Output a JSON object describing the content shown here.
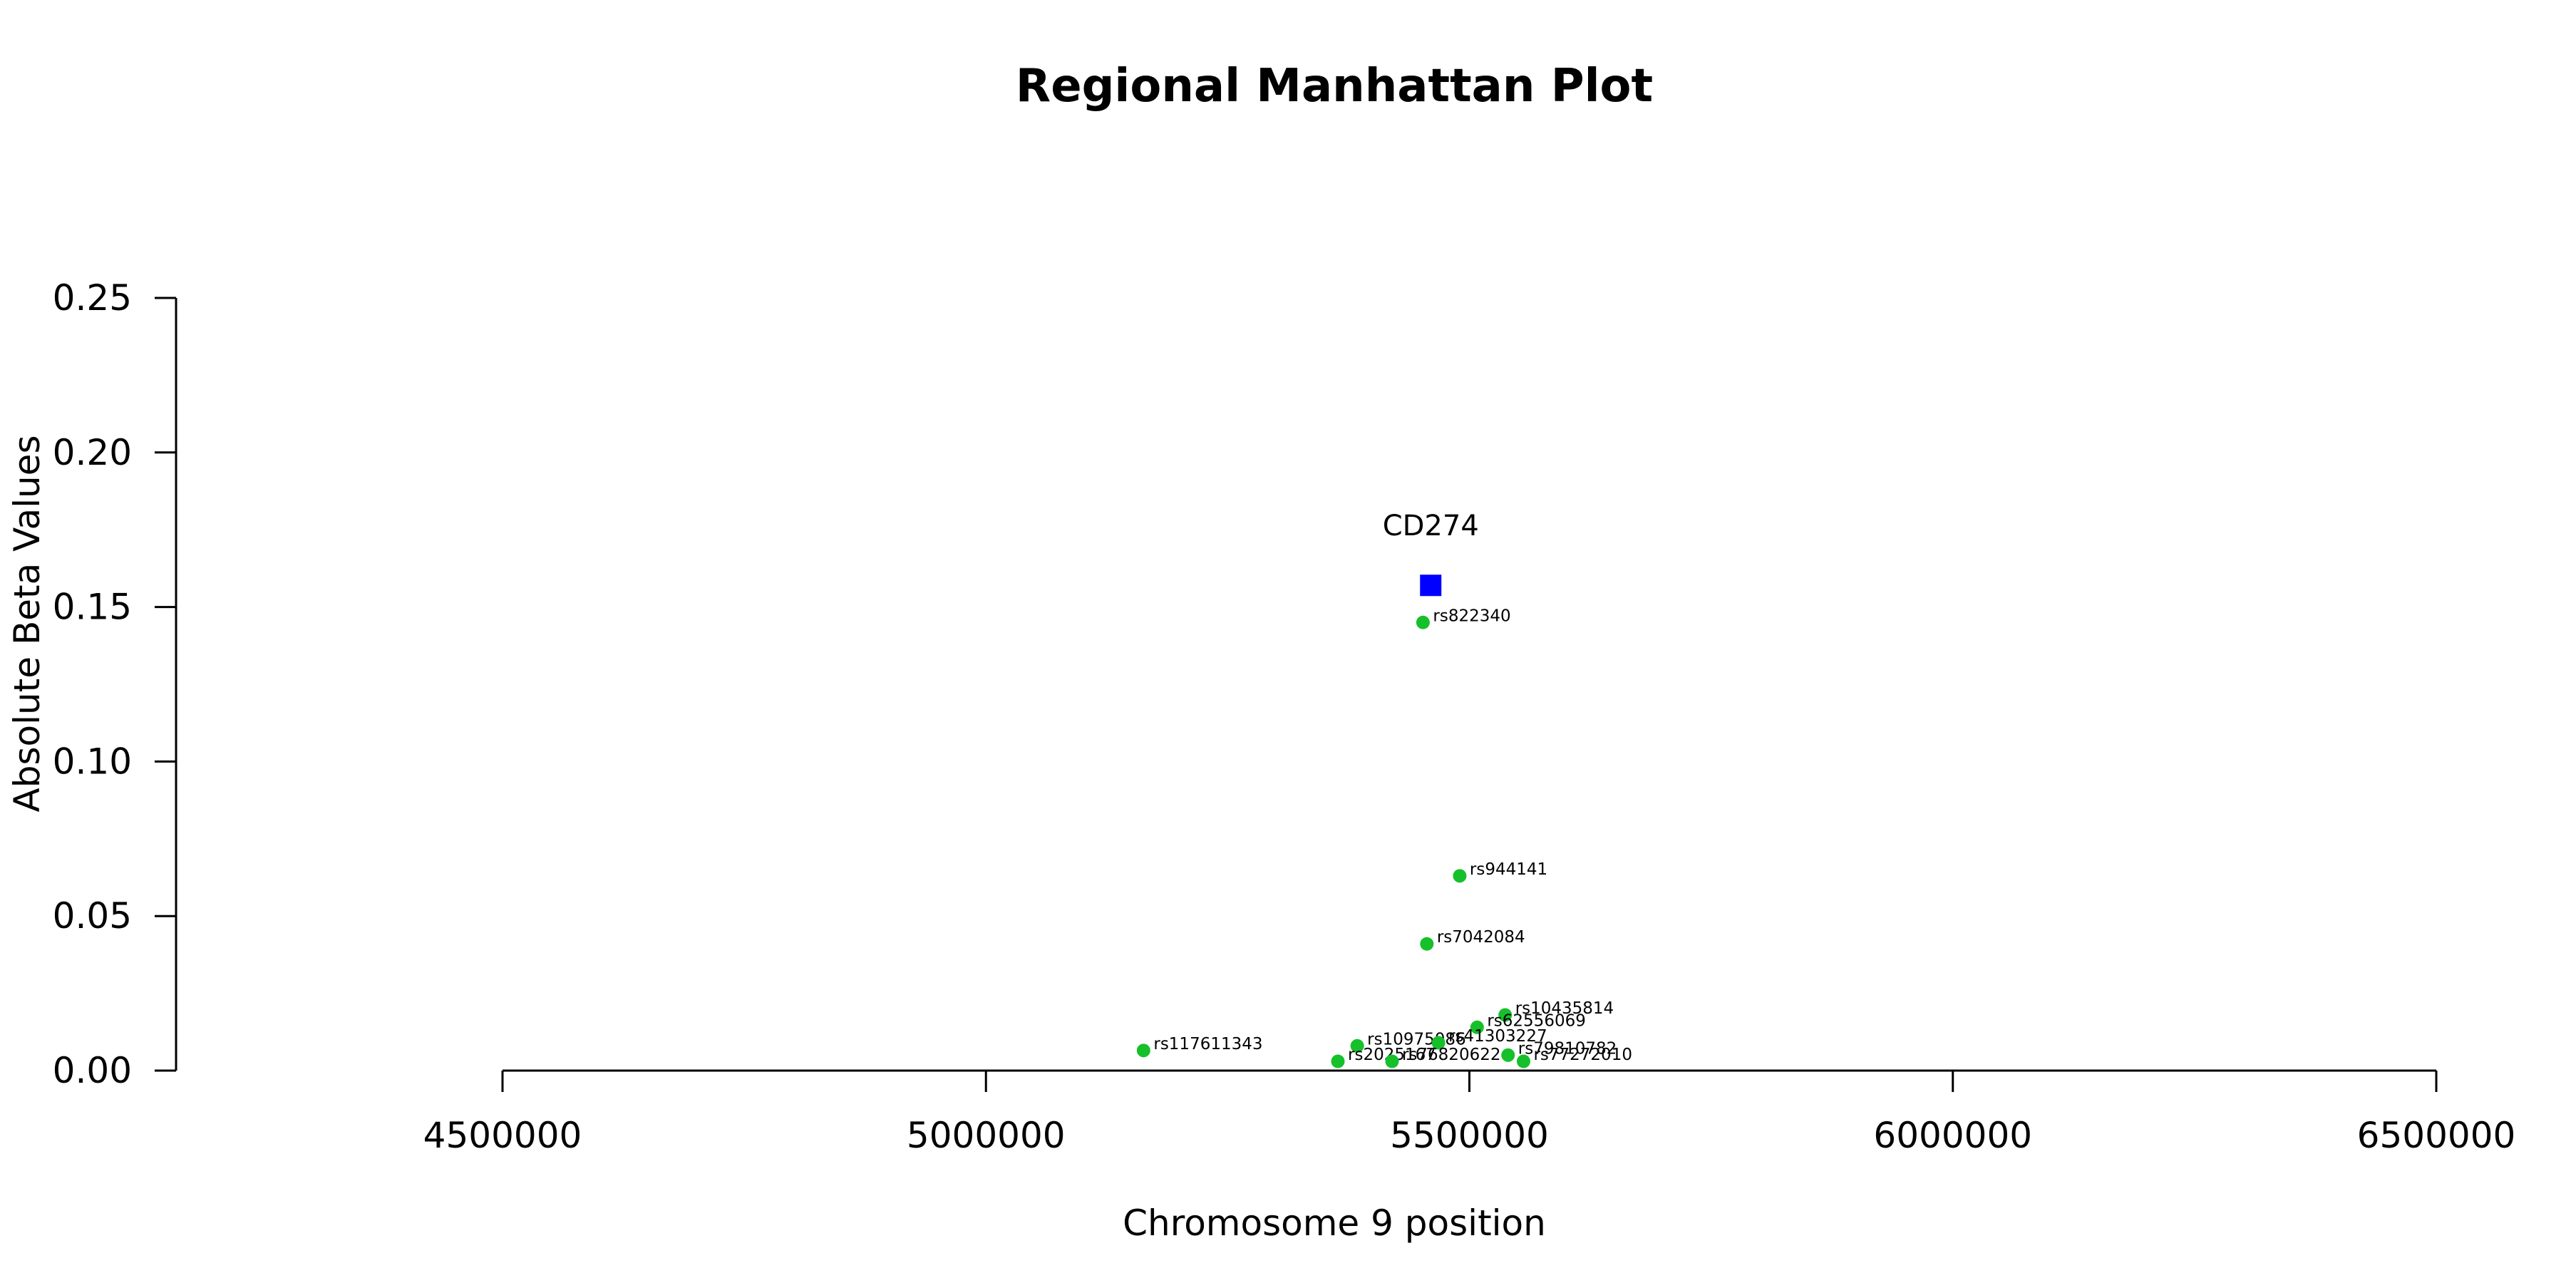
{
  "chart_data": {
    "type": "scatter",
    "title": "Regional Manhattan Plot",
    "xlabel": "Chromosome 9 position",
    "ylabel": "Absolute Beta Values",
    "xlim": [
      4500000,
      6500000
    ],
    "ylim": [
      0,
      0.25
    ],
    "x_ticks": [
      "4500000",
      "5000000",
      "5500000",
      "6000000",
      "6500000"
    ],
    "y_ticks": [
      "0.00",
      "0.05",
      "0.10",
      "0.15",
      "0.20",
      "0.25"
    ],
    "colors": {
      "snp": "#16c02a",
      "gene": "#0000ff",
      "axis": "#000000"
    },
    "gene": {
      "name": "CD274",
      "x": 5460000,
      "y": 0.157
    },
    "snps": [
      {
        "name": "rs822340",
        "x": 5452000,
        "y": 0.145
      },
      {
        "name": "rs944141",
        "x": 5490000,
        "y": 0.063
      },
      {
        "name": "rs7042084",
        "x": 5456000,
        "y": 0.041
      },
      {
        "name": "rs10435814",
        "x": 5537000,
        "y": 0.018
      },
      {
        "name": "rs62556069",
        "x": 5508000,
        "y": 0.014
      },
      {
        "name": "rs10975086",
        "x": 5384000,
        "y": 0.008
      },
      {
        "name": "rs41303227",
        "x": 5468000,
        "y": 0.009
      },
      {
        "name": "rs117611343",
        "x": 5163000,
        "y": 0.0065
      },
      {
        "name": "rs2025167",
        "x": 5364000,
        "y": 0.003
      },
      {
        "name": "rs76820622",
        "x": 5420000,
        "y": 0.003
      },
      {
        "name": "rs79810782",
        "x": 5540000,
        "y": 0.005
      },
      {
        "name": "rs77272010",
        "x": 5556000,
        "y": 0.003
      }
    ]
  }
}
